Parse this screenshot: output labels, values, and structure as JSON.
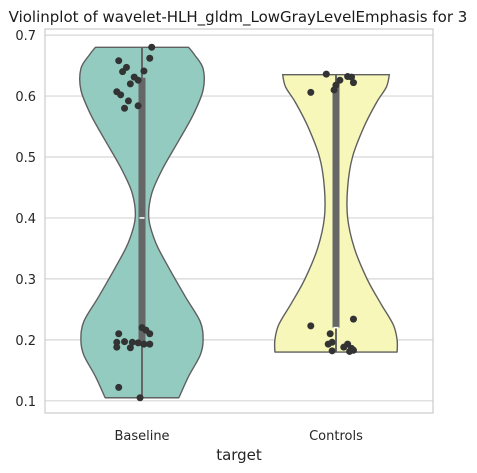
{
  "chart_data": {
    "type": "violin",
    "title": "Violinplot of wavelet-HLH_gldm_LowGrayLevelEmphasis for 3",
    "xlabel": "target",
    "ylabel": "",
    "ylim": [
      0.08,
      0.71
    ],
    "y_ticks": [
      0.1,
      0.2,
      0.3,
      0.4,
      0.5,
      0.6,
      0.7
    ],
    "y_tick_labels": [
      "0.1",
      "0.2",
      "0.3",
      "0.4",
      "0.5",
      "0.6",
      "0.7"
    ],
    "grid": true,
    "categories": [
      "Baseline",
      "Controls"
    ],
    "series": [
      {
        "category": "Baseline",
        "color": "#94cbc1",
        "min": 0.105,
        "max": 0.68,
        "q1": 0.19,
        "median": 0.4,
        "q3": 0.63,
        "density_profile": [
          {
            "y": 0.105,
            "half_width": 0.38
          },
          {
            "y": 0.14,
            "half_width": 0.48
          },
          {
            "y": 0.175,
            "half_width": 0.6
          },
          {
            "y": 0.2,
            "half_width": 0.63
          },
          {
            "y": 0.23,
            "half_width": 0.6
          },
          {
            "y": 0.27,
            "half_width": 0.45
          },
          {
            "y": 0.32,
            "half_width": 0.27
          },
          {
            "y": 0.36,
            "half_width": 0.14
          },
          {
            "y": 0.4,
            "half_width": 0.07
          },
          {
            "y": 0.44,
            "half_width": 0.1
          },
          {
            "y": 0.48,
            "half_width": 0.21
          },
          {
            "y": 0.53,
            "half_width": 0.39
          },
          {
            "y": 0.57,
            "half_width": 0.53
          },
          {
            "y": 0.61,
            "half_width": 0.63
          },
          {
            "y": 0.645,
            "half_width": 0.63
          },
          {
            "y": 0.668,
            "half_width": 0.54
          },
          {
            "y": 0.68,
            "half_width": 0.48
          }
        ],
        "points": [
          {
            "x": -0.12,
            "y": 0.658
          },
          {
            "x": 0.05,
            "y": 0.68
          },
          {
            "x": 0.04,
            "y": 0.662
          },
          {
            "x": -0.08,
            "y": 0.647
          },
          {
            "x": -0.1,
            "y": 0.64
          },
          {
            "x": 0.01,
            "y": 0.641
          },
          {
            "x": -0.04,
            "y": 0.631
          },
          {
            "x": -0.02,
            "y": 0.626
          },
          {
            "x": -0.06,
            "y": 0.62
          },
          {
            "x": -0.13,
            "y": 0.607
          },
          {
            "x": -0.11,
            "y": 0.602
          },
          {
            "x": -0.07,
            "y": 0.592
          },
          {
            "x": -0.02,
            "y": 0.584
          },
          {
            "x": -0.09,
            "y": 0.58
          },
          {
            "x": -0.12,
            "y": 0.21
          },
          {
            "x": 0.04,
            "y": 0.21
          },
          {
            "x": 0.0,
            "y": 0.22
          },
          {
            "x": 0.02,
            "y": 0.216
          },
          {
            "x": -0.13,
            "y": 0.196
          },
          {
            "x": -0.09,
            "y": 0.197
          },
          {
            "x": -0.05,
            "y": 0.196
          },
          {
            "x": -0.02,
            "y": 0.195
          },
          {
            "x": 0.01,
            "y": 0.193
          },
          {
            "x": 0.04,
            "y": 0.193
          },
          {
            "x": -0.13,
            "y": 0.188
          },
          {
            "x": -0.06,
            "y": 0.187
          },
          {
            "x": -0.12,
            "y": 0.122
          },
          {
            "x": -0.01,
            "y": 0.105
          }
        ]
      },
      {
        "category": "Controls",
        "color": "#f7f7ba",
        "min": 0.18,
        "max": 0.635,
        "q1": 0.22,
        "median": 0.22,
        "q3": 0.62,
        "density_profile": [
          {
            "y": 0.18,
            "half_width": 0.63
          },
          {
            "y": 0.2,
            "half_width": 0.63
          },
          {
            "y": 0.225,
            "half_width": 0.59
          },
          {
            "y": 0.26,
            "half_width": 0.46
          },
          {
            "y": 0.3,
            "half_width": 0.32
          },
          {
            "y": 0.35,
            "half_width": 0.19
          },
          {
            "y": 0.4,
            "half_width": 0.12
          },
          {
            "y": 0.45,
            "half_width": 0.12
          },
          {
            "y": 0.5,
            "half_width": 0.17
          },
          {
            "y": 0.55,
            "half_width": 0.29
          },
          {
            "y": 0.59,
            "half_width": 0.42
          },
          {
            "y": 0.615,
            "half_width": 0.52
          },
          {
            "y": 0.635,
            "half_width": 0.55
          }
        ],
        "points": [
          {
            "x": -0.05,
            "y": 0.636
          },
          {
            "x": 0.06,
            "y": 0.632
          },
          {
            "x": 0.08,
            "y": 0.631
          },
          {
            "x": 0.02,
            "y": 0.626
          },
          {
            "x": 0.09,
            "y": 0.622
          },
          {
            "x": 0.0,
            "y": 0.618
          },
          {
            "x": -0.01,
            "y": 0.61
          },
          {
            "x": -0.13,
            "y": 0.606
          },
          {
            "x": -0.13,
            "y": 0.223
          },
          {
            "x": 0.09,
            "y": 0.234
          },
          {
            "x": -0.03,
            "y": 0.21
          },
          {
            "x": -0.02,
            "y": 0.196
          },
          {
            "x": -0.04,
            "y": 0.193
          },
          {
            "x": 0.06,
            "y": 0.193
          },
          {
            "x": 0.04,
            "y": 0.188
          },
          {
            "x": 0.08,
            "y": 0.186
          },
          {
            "x": 0.09,
            "y": 0.183
          },
          {
            "x": -0.02,
            "y": 0.182
          },
          {
            "x": 0.07,
            "y": 0.181
          }
        ]
      }
    ]
  }
}
